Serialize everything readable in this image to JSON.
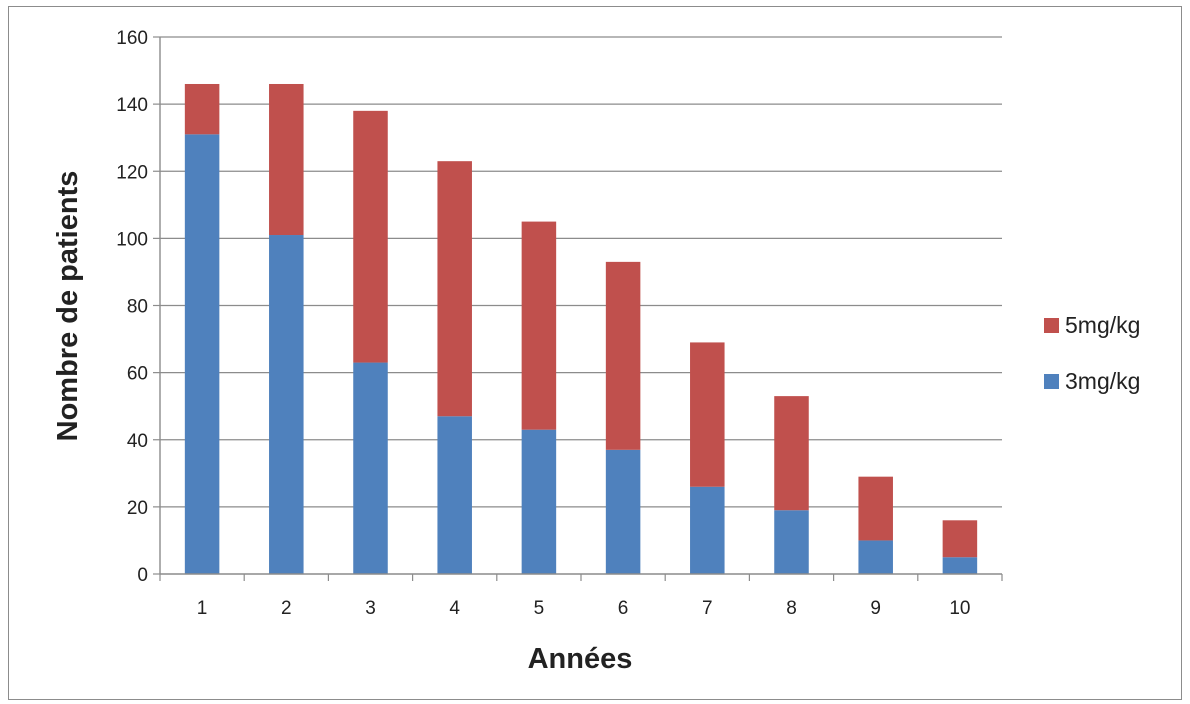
{
  "chart_data": {
    "type": "bar",
    "stacked": true,
    "categories": [
      "1",
      "2",
      "3",
      "4",
      "5",
      "6",
      "7",
      "8",
      "9",
      "10"
    ],
    "series": [
      {
        "name": "3mg/kg",
        "color": "#4f81bd",
        "values": [
          131,
          101,
          63,
          47,
          43,
          37,
          26,
          19,
          10,
          5
        ]
      },
      {
        "name": "5mg/kg",
        "color": "#c0504d",
        "values": [
          15,
          45,
          75,
          76,
          62,
          56,
          43,
          34,
          19,
          11
        ]
      }
    ],
    "legend_order": [
      "5mg/kg",
      "3mg/kg"
    ],
    "ylim": [
      0,
      160
    ],
    "yticks": [
      "0",
      "20",
      "40",
      "60",
      "80",
      "100",
      "120",
      "140",
      "160"
    ],
    "xlabel": "Années",
    "ylabel": "Nombre de patients",
    "grid": true,
    "legend_position": "right"
  }
}
